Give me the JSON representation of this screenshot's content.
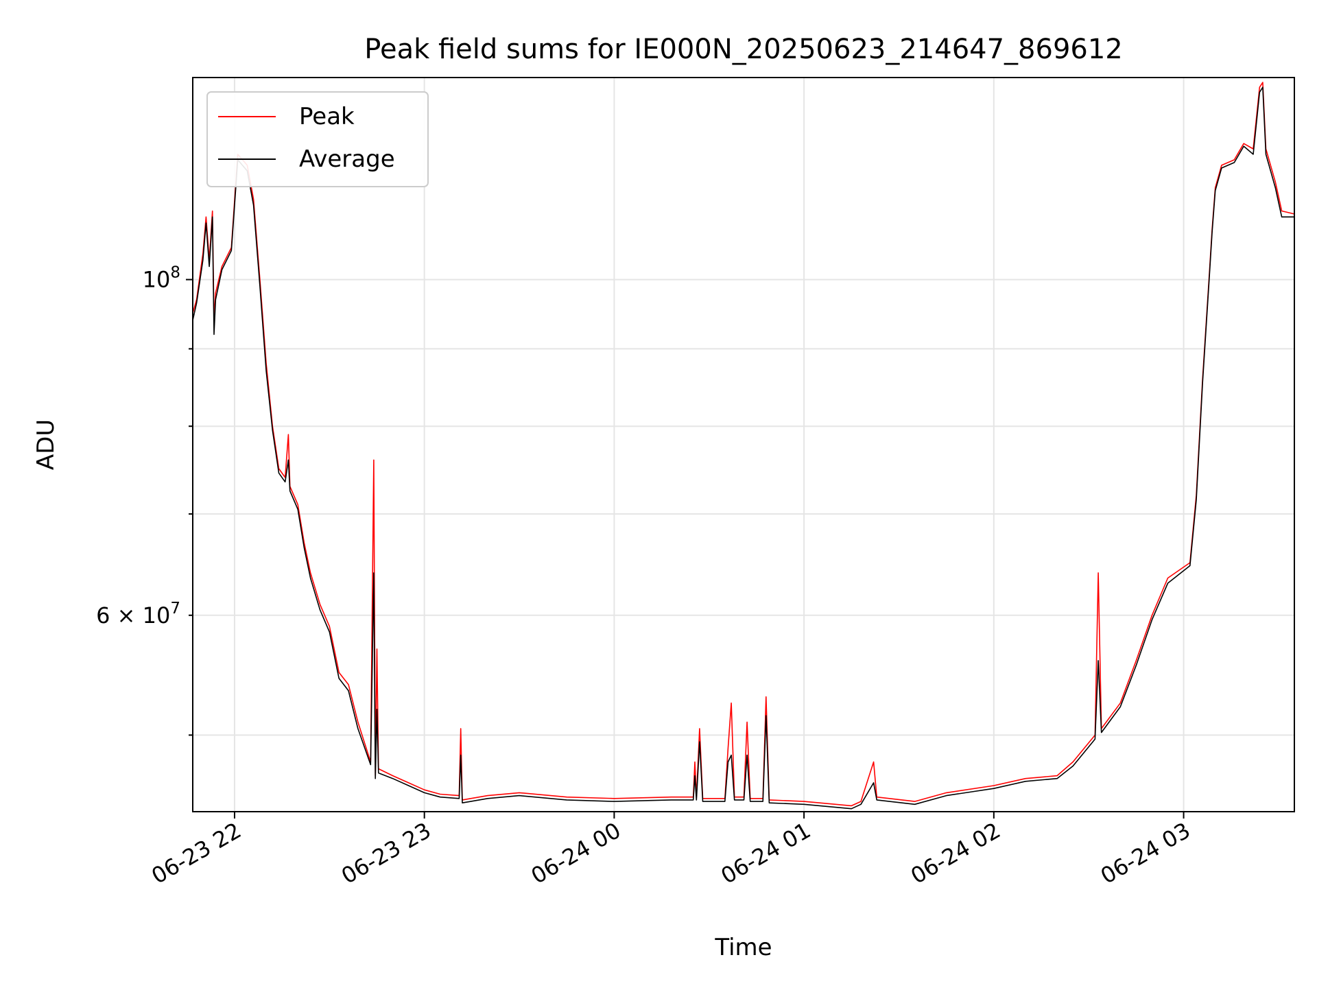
{
  "chart_data": {
    "type": "line",
    "title": "Peak field sums for IE000N_20250623_214647_869612",
    "xlabel": "Time",
    "ylabel": "ADU",
    "yscale": "log",
    "xlim": [
      "2025-06-23 21:46:47",
      "2025-06-24 03:35:00"
    ],
    "ylim": [
      44500000,
      136000000
    ],
    "grid": true,
    "legend": {
      "placement": "top-left"
    },
    "x_ticks": [
      {
        "x": "2025-06-23 22:00",
        "label": "06-23 22"
      },
      {
        "x": "2025-06-23 23:00",
        "label": "06-23 23"
      },
      {
        "x": "2025-06-24 00:00",
        "label": "06-24 00"
      },
      {
        "x": "2025-06-24 01:00",
        "label": "06-24 01"
      },
      {
        "x": "2025-06-24 02:00",
        "label": "06-24 02"
      },
      {
        "x": "2025-06-24 03:00",
        "label": "06-24 03"
      }
    ],
    "y_ticks_major": [
      {
        "y": 100000000,
        "base": "10",
        "exp": "8",
        "prefix": ""
      }
    ],
    "y_ticks_minor": [
      {
        "y": 60000000,
        "base": "10",
        "exp": "7",
        "prefix": "6 × "
      }
    ],
    "y_minor_grid": [
      50000000,
      70000000,
      80000000,
      90000000
    ],
    "series": [
      {
        "name": "Peak",
        "color": "#ff0000",
        "points": [
          [
            "2025-06-23 21:46:47",
            95000000
          ],
          [
            "2025-06-23 21:48",
            97000000
          ],
          [
            "2025-06-23 21:50",
            104000000
          ],
          [
            "2025-06-23 21:51",
            110000000
          ],
          [
            "2025-06-23 21:52",
            103000000
          ],
          [
            "2025-06-23 21:53",
            111000000
          ],
          [
            "2025-06-23 21:53:30",
            94000000
          ],
          [
            "2025-06-23 21:54",
            98000000
          ],
          [
            "2025-06-23 21:56",
            102000000
          ],
          [
            "2025-06-23 21:59",
            105000000
          ],
          [
            "2025-06-23 22:01",
            121000000
          ],
          [
            "2025-06-23 22:04",
            119000000
          ],
          [
            "2025-06-23 22:06",
            113000000
          ],
          [
            "2025-06-23 22:08",
            100000000
          ],
          [
            "2025-06-23 22:10",
            88000000
          ],
          [
            "2025-06-23 22:12",
            80000000
          ],
          [
            "2025-06-23 22:14",
            75000000
          ],
          [
            "2025-06-23 22:16",
            74000000
          ],
          [
            "2025-06-23 22:17",
            79000000
          ],
          [
            "2025-06-23 22:17:30",
            73000000
          ],
          [
            "2025-06-23 22:20",
            71000000
          ],
          [
            "2025-06-23 22:22",
            67000000
          ],
          [
            "2025-06-23 22:24",
            64000000
          ],
          [
            "2025-06-23 22:27",
            61000000
          ],
          [
            "2025-06-23 22:30",
            59000000
          ],
          [
            "2025-06-23 22:33",
            55000000
          ],
          [
            "2025-06-23 22:36",
            54000000
          ],
          [
            "2025-06-23 22:39",
            51000000
          ],
          [
            "2025-06-23 22:43",
            48000000
          ],
          [
            "2025-06-23 22:44",
            76000000
          ],
          [
            "2025-06-23 22:44:30",
            47000000
          ],
          [
            "2025-06-23 22:45",
            57000000
          ],
          [
            "2025-06-23 22:45:30",
            47500000
          ],
          [
            "2025-06-23 22:50",
            47000000
          ],
          [
            "2025-06-23 22:55",
            46500000
          ],
          [
            "2025-06-23 23:00",
            46000000
          ],
          [
            "2025-06-23 23:05",
            45700000
          ],
          [
            "2025-06-23 23:11",
            45600000
          ],
          [
            "2025-06-23 23:11:30",
            50500000
          ],
          [
            "2025-06-23 23:12",
            45300000
          ],
          [
            "2025-06-23 23:20",
            45600000
          ],
          [
            "2025-06-23 23:30",
            45800000
          ],
          [
            "2025-06-23 23:45",
            45500000
          ],
          [
            "2025-06-24 00:00",
            45400000
          ],
          [
            "2025-06-24 00:18",
            45500000
          ],
          [
            "2025-06-24 00:25",
            45500000
          ],
          [
            "2025-06-24 00:25:30",
            48000000
          ],
          [
            "2025-06-24 00:26",
            45500000
          ],
          [
            "2025-06-24 00:27",
            50500000
          ],
          [
            "2025-06-24 00:28",
            45400000
          ],
          [
            "2025-06-24 00:35",
            45400000
          ],
          [
            "2025-06-24 00:36",
            49000000
          ],
          [
            "2025-06-24 00:37",
            52500000
          ],
          [
            "2025-06-24 00:38",
            45500000
          ],
          [
            "2025-06-24 00:41",
            45500000
          ],
          [
            "2025-06-24 00:42",
            51000000
          ],
          [
            "2025-06-24 00:43",
            45400000
          ],
          [
            "2025-06-24 00:47",
            45400000
          ],
          [
            "2025-06-24 00:48",
            53000000
          ],
          [
            "2025-06-24 00:49",
            45300000
          ],
          [
            "2025-06-24 01:00",
            45200000
          ],
          [
            "2025-06-24 01:15",
            44900000
          ],
          [
            "2025-06-24 01:18",
            45200000
          ],
          [
            "2025-06-24 01:22",
            48000000
          ],
          [
            "2025-06-24 01:23",
            45500000
          ],
          [
            "2025-06-24 01:35",
            45200000
          ],
          [
            "2025-06-24 01:45",
            45800000
          ],
          [
            "2025-06-24 02:00",
            46300000
          ],
          [
            "2025-06-24 02:10",
            46800000
          ],
          [
            "2025-06-24 02:20",
            47000000
          ],
          [
            "2025-06-24 02:25",
            48000000
          ],
          [
            "2025-06-24 02:32",
            50000000
          ],
          [
            "2025-06-24 02:33",
            64000000
          ],
          [
            "2025-06-24 02:34",
            50500000
          ],
          [
            "2025-06-24 02:40",
            52500000
          ],
          [
            "2025-06-24 02:45",
            56000000
          ],
          [
            "2025-06-24 02:50",
            60000000
          ],
          [
            "2025-06-24 02:55",
            63500000
          ],
          [
            "2025-06-24 03:02",
            65000000
          ],
          [
            "2025-06-24 03:04",
            72000000
          ],
          [
            "2025-06-24 03:06",
            86000000
          ],
          [
            "2025-06-24 03:08",
            100000000
          ],
          [
            "2025-06-24 03:09",
            108000000
          ],
          [
            "2025-06-24 03:10",
            115000000
          ],
          [
            "2025-06-24 03:12",
            119000000
          ],
          [
            "2025-06-24 03:16",
            120000000
          ],
          [
            "2025-06-24 03:19",
            123000000
          ],
          [
            "2025-06-24 03:22",
            122000000
          ],
          [
            "2025-06-24 03:24",
            134000000
          ],
          [
            "2025-06-24 03:25",
            135000000
          ],
          [
            "2025-06-24 03:26",
            122000000
          ],
          [
            "2025-06-24 03:29",
            116000000
          ],
          [
            "2025-06-24 03:31",
            111000000
          ],
          [
            "2025-06-24 03:35",
            110500000
          ]
        ]
      },
      {
        "name": "Average",
        "color": "#000000",
        "points": [
          [
            "2025-06-23 21:46:47",
            94000000
          ],
          [
            "2025-06-23 21:48",
            96500000
          ],
          [
            "2025-06-23 21:50",
            103000000
          ],
          [
            "2025-06-23 21:51",
            109000000
          ],
          [
            "2025-06-23 21:52",
            102000000
          ],
          [
            "2025-06-23 21:53",
            110000000
          ],
          [
            "2025-06-23 21:53:30",
            92000000
          ],
          [
            "2025-06-23 21:54",
            97000000
          ],
          [
            "2025-06-23 21:56",
            101500000
          ],
          [
            "2025-06-23 21:59",
            104500000
          ],
          [
            "2025-06-23 22:01",
            120000000
          ],
          [
            "2025-06-23 22:04",
            118000000
          ],
          [
            "2025-06-23 22:06",
            112000000
          ],
          [
            "2025-06-23 22:08",
            99000000
          ],
          [
            "2025-06-23 22:10",
            87000000
          ],
          [
            "2025-06-23 22:12",
            79500000
          ],
          [
            "2025-06-23 22:14",
            74500000
          ],
          [
            "2025-06-23 22:16",
            73500000
          ],
          [
            "2025-06-23 22:17",
            76000000
          ],
          [
            "2025-06-23 22:17:30",
            72500000
          ],
          [
            "2025-06-23 22:20",
            70500000
          ],
          [
            "2025-06-23 22:22",
            66500000
          ],
          [
            "2025-06-23 22:24",
            63500000
          ],
          [
            "2025-06-23 22:27",
            60500000
          ],
          [
            "2025-06-23 22:30",
            58500000
          ],
          [
            "2025-06-23 22:33",
            54500000
          ],
          [
            "2025-06-23 22:36",
            53500000
          ],
          [
            "2025-06-23 22:39",
            50500000
          ],
          [
            "2025-06-23 22:43",
            47800000
          ],
          [
            "2025-06-23 22:44",
            64000000
          ],
          [
            "2025-06-23 22:44:30",
            46800000
          ],
          [
            "2025-06-23 22:45",
            52000000
          ],
          [
            "2025-06-23 22:45:30",
            47200000
          ],
          [
            "2025-06-23 22:50",
            46800000
          ],
          [
            "2025-06-23 22:55",
            46300000
          ],
          [
            "2025-06-23 23:00",
            45800000
          ],
          [
            "2025-06-23 23:05",
            45500000
          ],
          [
            "2025-06-23 23:11",
            45400000
          ],
          [
            "2025-06-23 23:11:30",
            48500000
          ],
          [
            "2025-06-23 23:12",
            45100000
          ],
          [
            "2025-06-23 23:20",
            45400000
          ],
          [
            "2025-06-23 23:30",
            45600000
          ],
          [
            "2025-06-23 23:45",
            45300000
          ],
          [
            "2025-06-24 00:00",
            45200000
          ],
          [
            "2025-06-24 00:18",
            45300000
          ],
          [
            "2025-06-24 00:25",
            45300000
          ],
          [
            "2025-06-24 00:25:30",
            47000000
          ],
          [
            "2025-06-24 00:26",
            45300000
          ],
          [
            "2025-06-24 00:27",
            49500000
          ],
          [
            "2025-06-24 00:28",
            45200000
          ],
          [
            "2025-06-24 00:35",
            45200000
          ],
          [
            "2025-06-24 00:36",
            48000000
          ],
          [
            "2025-06-24 00:37",
            48500000
          ],
          [
            "2025-06-24 00:38",
            45300000
          ],
          [
            "2025-06-24 00:41",
            45300000
          ],
          [
            "2025-06-24 00:42",
            48500000
          ],
          [
            "2025-06-24 00:43",
            45200000
          ],
          [
            "2025-06-24 00:47",
            45200000
          ],
          [
            "2025-06-24 00:48",
            51500000
          ],
          [
            "2025-06-24 00:49",
            45100000
          ],
          [
            "2025-06-24 01:00",
            45000000
          ],
          [
            "2025-06-24 01:15",
            44700000
          ],
          [
            "2025-06-24 01:18",
            45000000
          ],
          [
            "2025-06-24 01:22",
            46500000
          ],
          [
            "2025-06-24 01:23",
            45300000
          ],
          [
            "2025-06-24 01:35",
            45000000
          ],
          [
            "2025-06-24 01:45",
            45600000
          ],
          [
            "2025-06-24 02:00",
            46100000
          ],
          [
            "2025-06-24 02:10",
            46600000
          ],
          [
            "2025-06-24 02:20",
            46800000
          ],
          [
            "2025-06-24 02:25",
            47700000
          ],
          [
            "2025-06-24 02:32",
            49700000
          ],
          [
            "2025-06-24 02:33",
            56000000
          ],
          [
            "2025-06-24 02:34",
            50200000
          ],
          [
            "2025-06-24 02:40",
            52200000
          ],
          [
            "2025-06-24 02:45",
            55600000
          ],
          [
            "2025-06-24 02:50",
            59600000
          ],
          [
            "2025-06-24 02:55",
            63000000
          ],
          [
            "2025-06-24 03:02",
            64700000
          ],
          [
            "2025-06-24 03:04",
            71500000
          ],
          [
            "2025-06-24 03:06",
            85500000
          ],
          [
            "2025-06-24 03:08",
            99500000
          ],
          [
            "2025-06-24 03:09",
            107500000
          ],
          [
            "2025-06-24 03:10",
            114500000
          ],
          [
            "2025-06-24 03:12",
            118500000
          ],
          [
            "2025-06-24 03:16",
            119500000
          ],
          [
            "2025-06-24 03:19",
            122500000
          ],
          [
            "2025-06-24 03:22",
            121000000
          ],
          [
            "2025-06-24 03:24",
            133000000
          ],
          [
            "2025-06-24 03:25",
            134000000
          ],
          [
            "2025-06-24 03:26",
            121000000
          ],
          [
            "2025-06-24 03:29",
            115000000
          ],
          [
            "2025-06-24 03:31",
            110000000
          ],
          [
            "2025-06-24 03:35",
            110000000
          ]
        ]
      }
    ]
  }
}
